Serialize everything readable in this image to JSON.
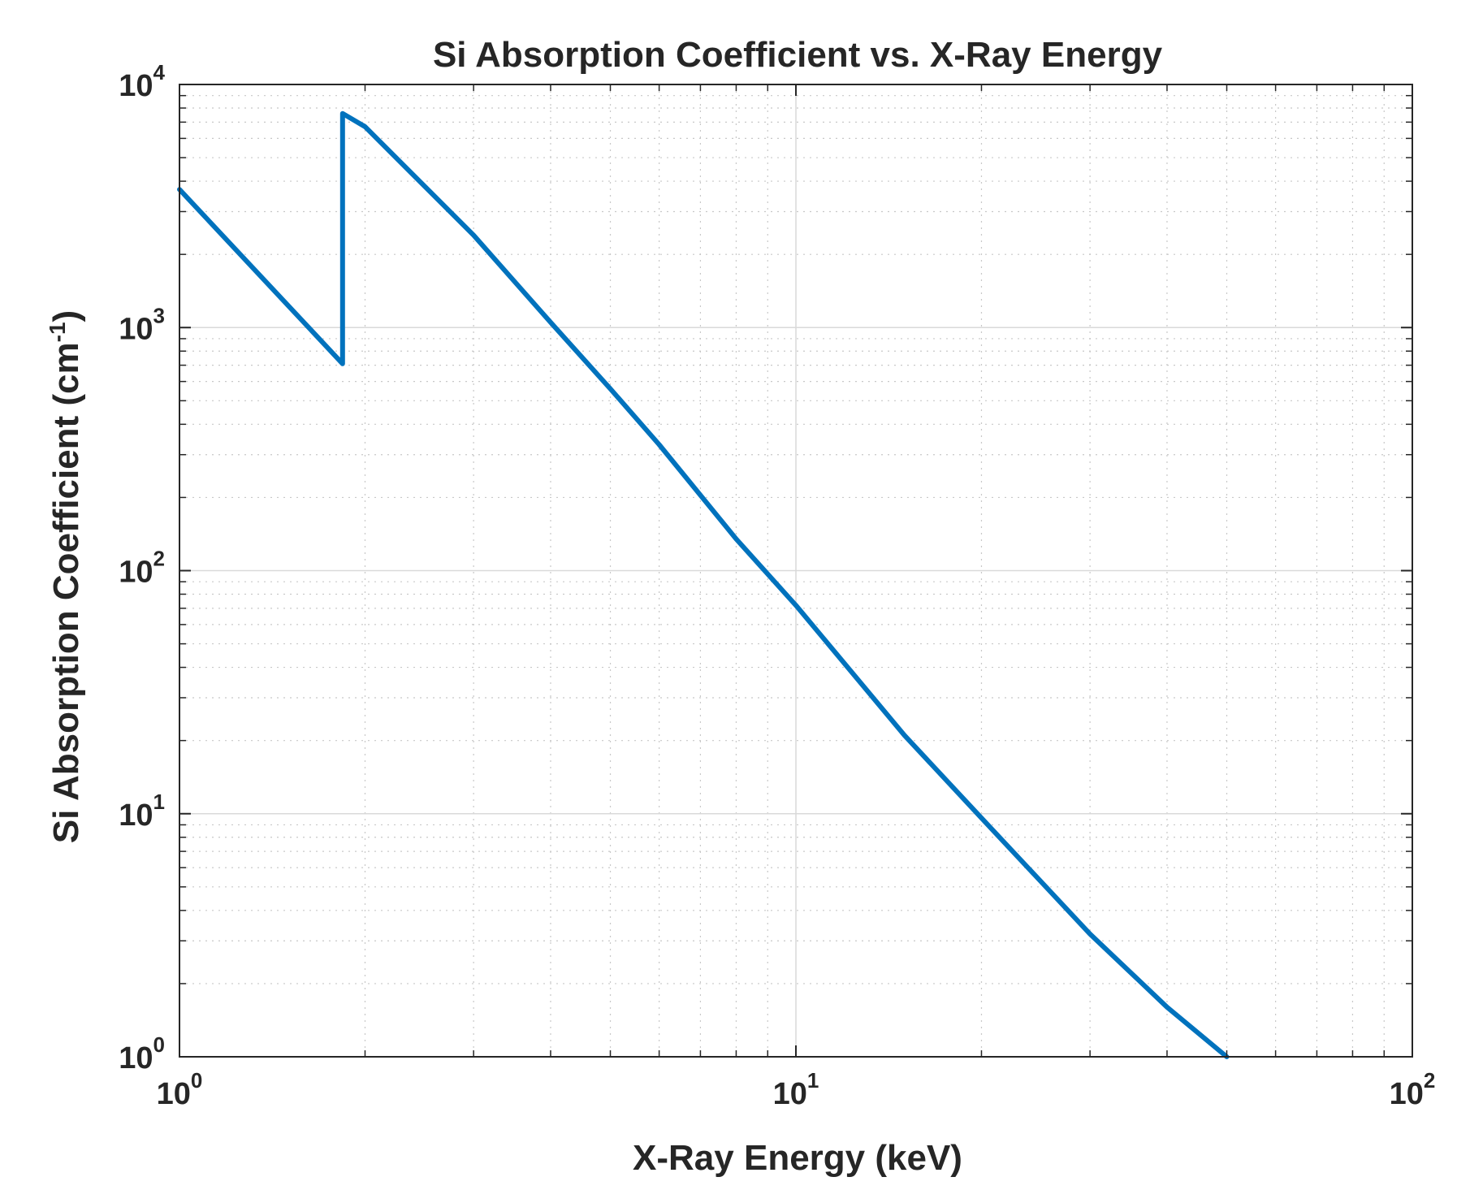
{
  "chart_data": {
    "type": "line",
    "title": "Si Absorption Coefficient vs. X-Ray Energy",
    "xlabel": "X-Ray Energy (keV)",
    "ylabel": {
      "base": "Si Absorption Coefficient (cm",
      "superscript": "-1",
      "suffix": ")"
    },
    "xscale": "log",
    "yscale": "log",
    "xlim": [
      1,
      100
    ],
    "ylim": [
      1,
      10000
    ],
    "grid": true,
    "minor_grid": true,
    "x_ticks": [
      {
        "base": "10",
        "exp": "0",
        "value": 1
      },
      {
        "base": "10",
        "exp": "1",
        "value": 10
      },
      {
        "base": "10",
        "exp": "2",
        "value": 100
      }
    ],
    "y_ticks": [
      {
        "base": "10",
        "exp": "0",
        "value": 1
      },
      {
        "base": "10",
        "exp": "1",
        "value": 10
      },
      {
        "base": "10",
        "exp": "2",
        "value": 100
      },
      {
        "base": "10",
        "exp": "3",
        "value": 1000
      },
      {
        "base": "10",
        "exp": "4",
        "value": 10000
      }
    ],
    "series": [
      {
        "name": "Si",
        "color": "#0072BD",
        "x": [
          1.0,
          1.839,
          1.839,
          2.0,
          3.0,
          4.0,
          5.0,
          6.0,
          8.0,
          10.0,
          15.0,
          20.0,
          30.0,
          40.0,
          50.0
        ],
        "y": [
          3700,
          710,
          7600,
          6700,
          2400,
          1050,
          560,
          330,
          135,
          72,
          21,
          9.6,
          3.2,
          1.6,
          1.0
        ]
      }
    ]
  }
}
